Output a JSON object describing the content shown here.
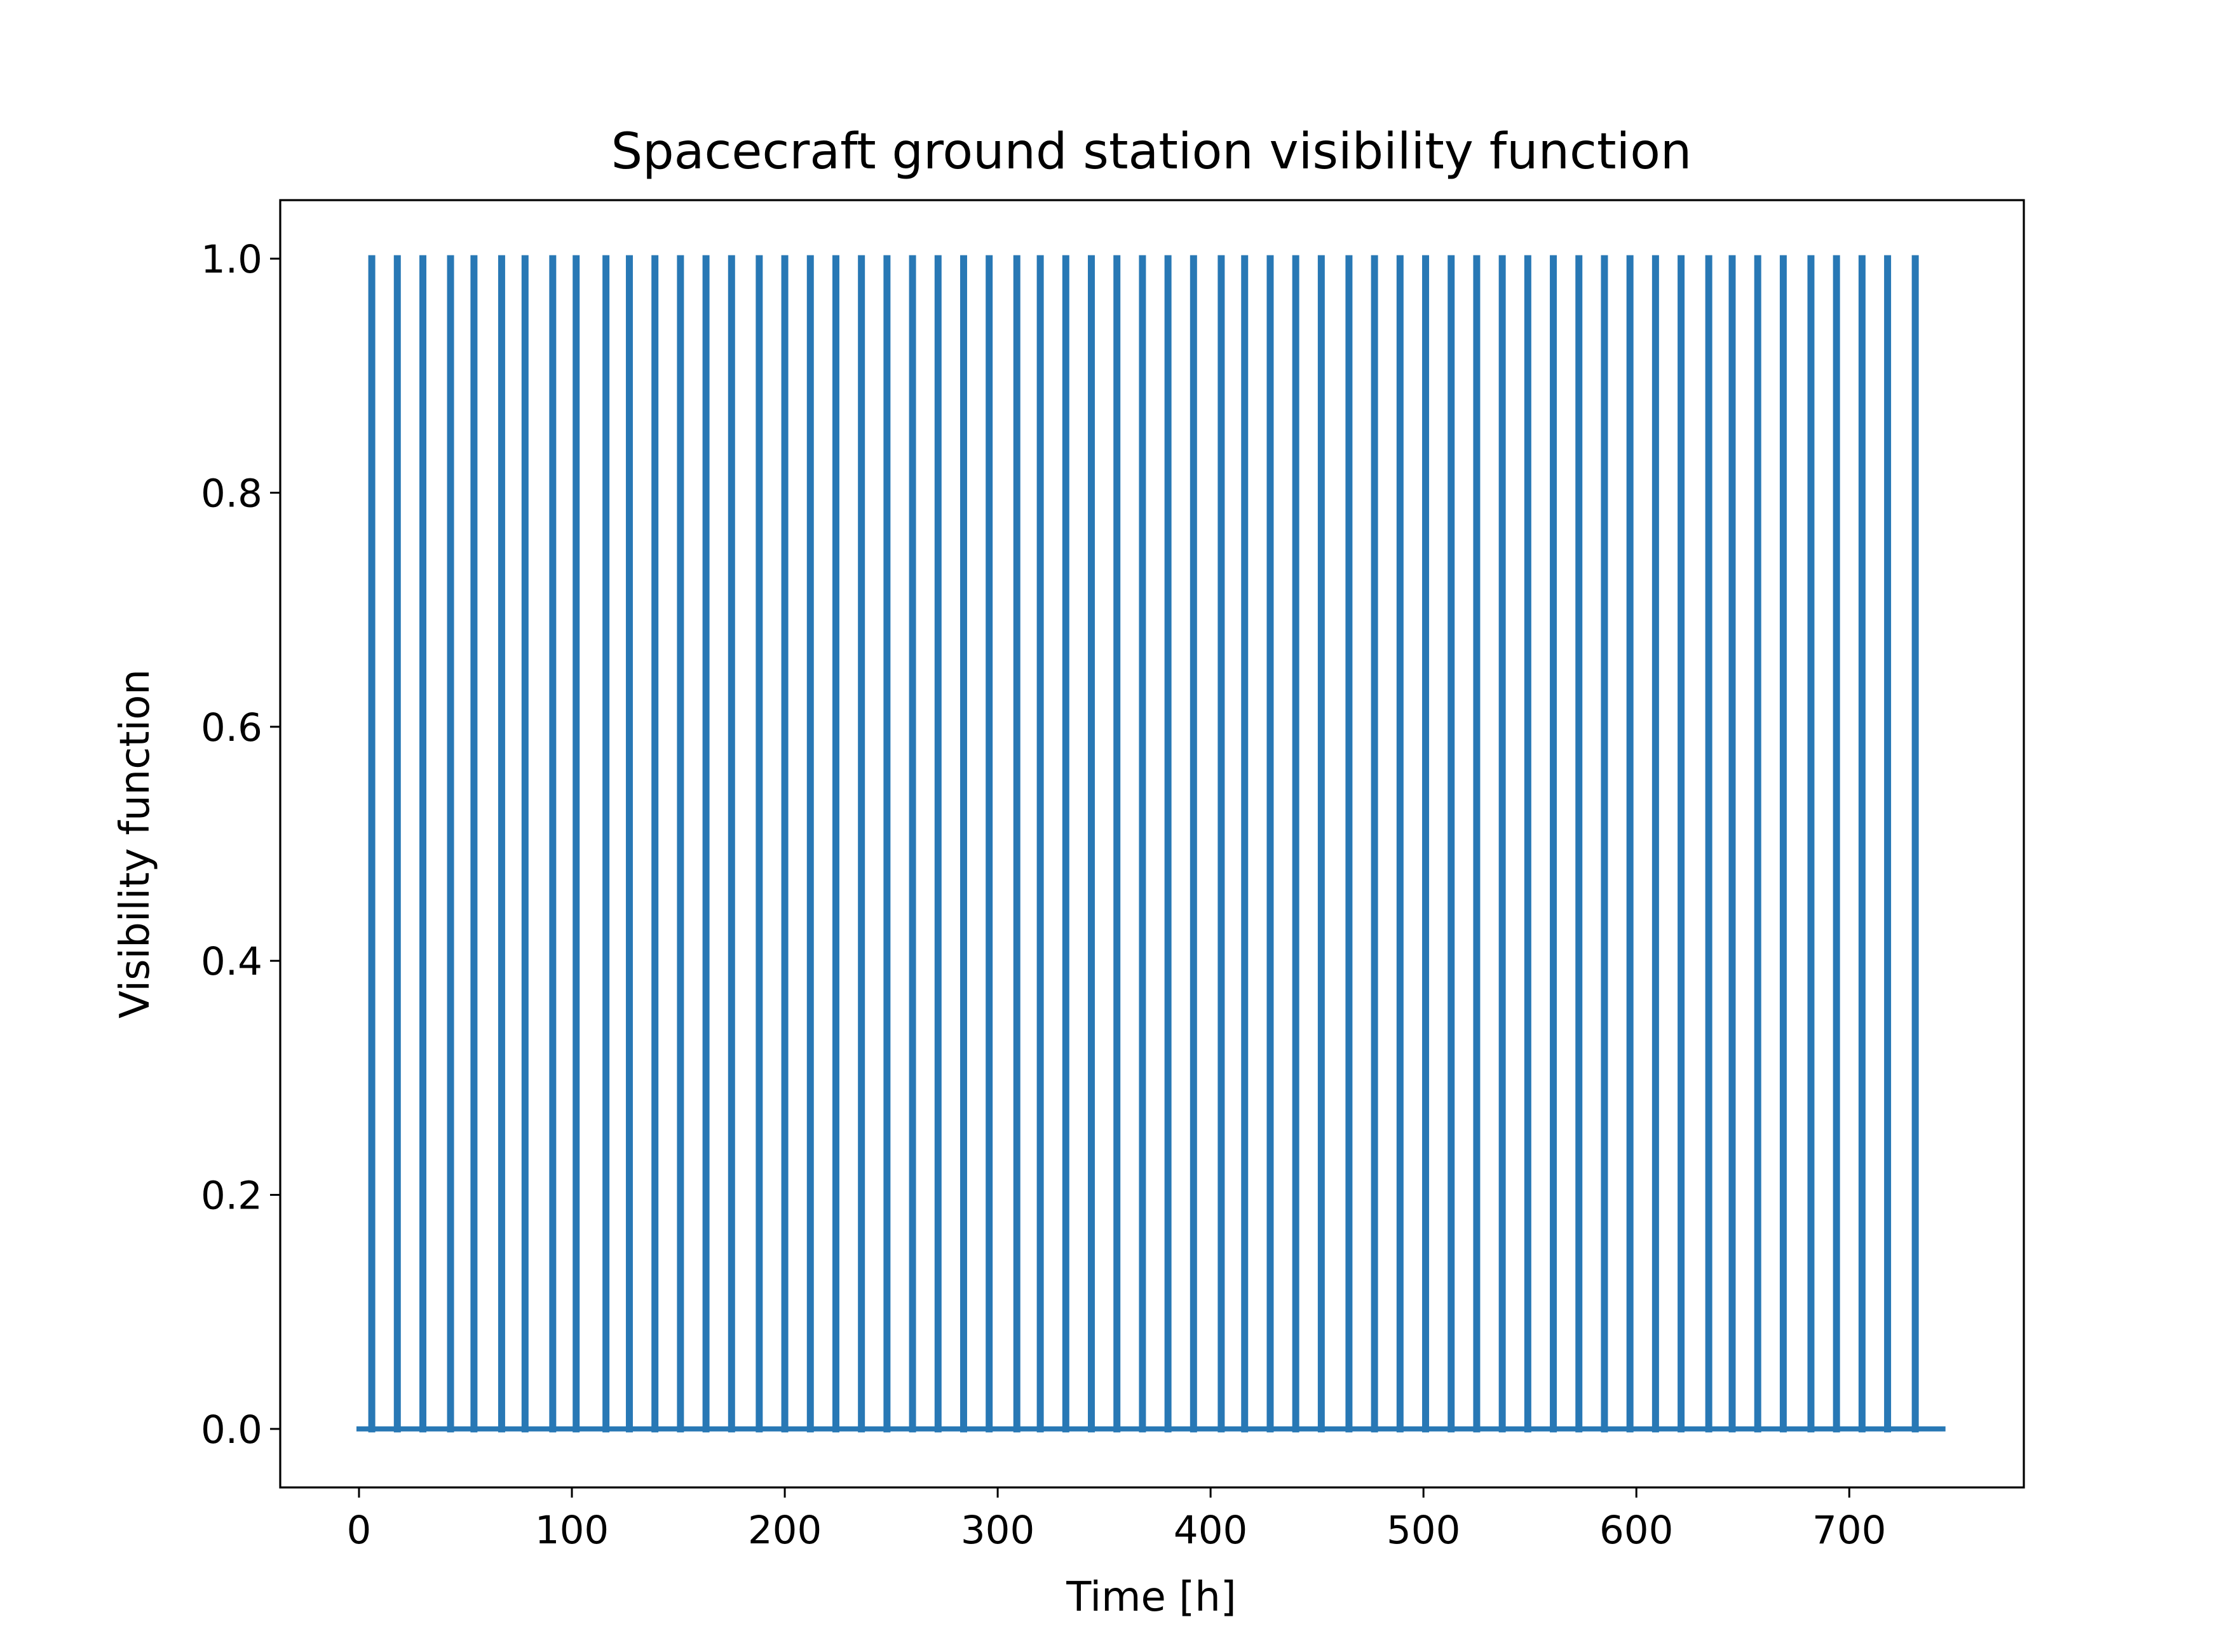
{
  "chart_data": {
    "type": "line",
    "title": "Spacecraft ground station visibility function",
    "xlabel": "Time [h]",
    "ylabel": "Visibility function",
    "xlim": [
      -37,
      782
    ],
    "ylim": [
      -0.05,
      1.05
    ],
    "xticks": [
      0,
      100,
      200,
      300,
      400,
      500,
      600,
      700
    ],
    "yticks": [
      0.0,
      0.2,
      0.4,
      0.6,
      0.8,
      1.0
    ],
    "xtick_labels": [
      "0",
      "100",
      "200",
      "300",
      "400",
      "500",
      "600",
      "700"
    ],
    "ytick_labels": [
      "0.0",
      "0.2",
      "0.4",
      "0.6",
      "0.8",
      "1.0"
    ],
    "grid": false,
    "color": "#2878b5",
    "series": [
      {
        "x_range": [
          0,
          744
        ],
        "baseline": 0,
        "pulse_value": 1,
        "pulse_times": [
          6,
          18,
          30,
          43,
          54,
          67,
          78,
          91,
          102,
          116,
          127,
          139,
          151,
          163,
          175,
          188,
          200,
          212,
          224,
          236,
          248,
          260,
          272,
          284,
          296,
          309,
          320,
          332,
          344,
          356,
          368,
          380,
          392,
          405,
          416,
          428,
          440,
          452,
          465,
          477,
          489,
          501,
          513,
          525,
          537,
          549,
          561,
          573,
          585,
          597,
          609,
          621,
          634,
          645,
          657,
          669,
          682,
          694,
          706,
          718,
          731
        ]
      }
    ]
  }
}
